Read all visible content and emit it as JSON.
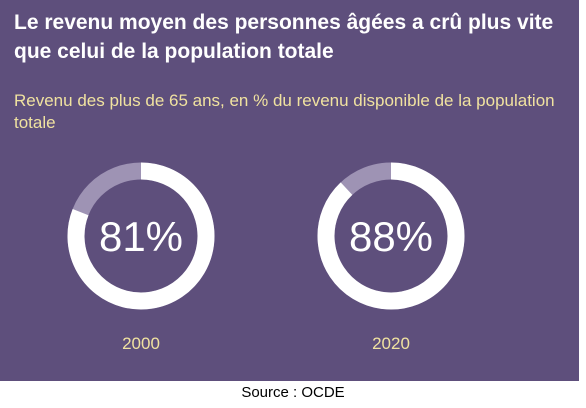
{
  "title": "Le revenu moyen des personnes âgées a crû plus vite que celui de la population totale",
  "source": "Source : OCDE",
  "colors": {
    "background": "#5e4f7c",
    "ring_filled": "#ffffff",
    "ring_remainder": "#9e93b4",
    "title": "#ffffff",
    "subtitle": "#f0e2a0",
    "value_label": "#ffffff",
    "category_label": "#f0e2a0"
  },
  "chart_data": {
    "type": "pie",
    "subtitle": "Revenu des plus de 65 ans, en % du revenu disponible de la population totale",
    "categories": [
      "2000",
      "2020"
    ],
    "values": [
      81,
      88
    ],
    "value_labels": [
      "81%",
      "88%"
    ],
    "max": 100
  }
}
